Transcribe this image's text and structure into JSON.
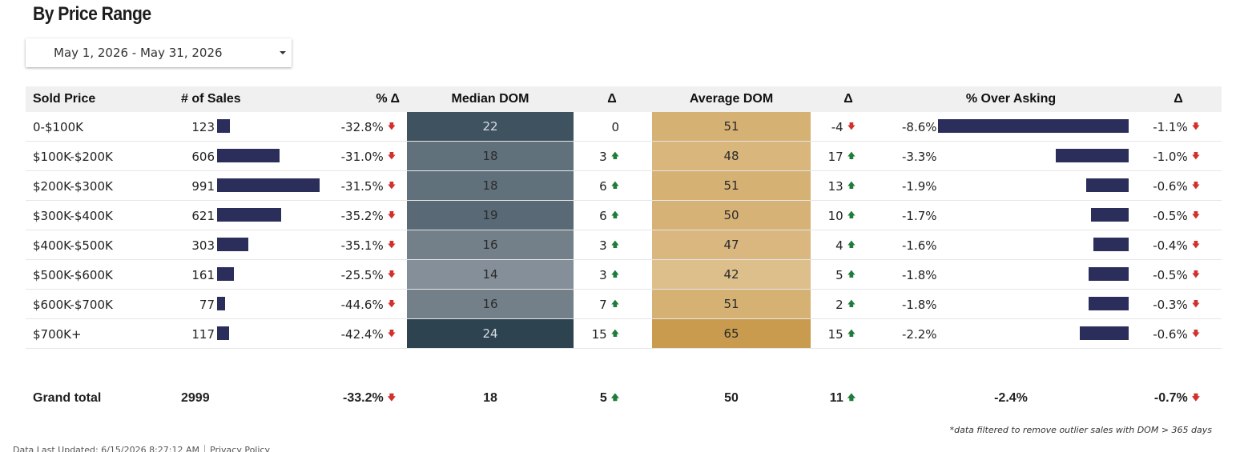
{
  "title": "By Price Range",
  "date_range": {
    "label": "May 1, 2026 - May 31, 2026",
    "icon": "caret-down-icon"
  },
  "table": {
    "columns": [
      "Sold Price",
      "# of Sales",
      "% Δ",
      "Median DOM",
      "Δ",
      "Average DOM",
      "Δ",
      "% Over Asking",
      "Δ"
    ],
    "rows": [
      {
        "price": "0-$100K",
        "sales": 123,
        "sales_pct": "-32.8%",
        "sales_pct_dir": "down",
        "median_dom": 22,
        "median_delta": "0",
        "median_dir": "none",
        "avg_dom": 51,
        "avg_delta": "-4",
        "avg_dir": "down",
        "over_asking": "-8.6%",
        "over_asking_value": -8.6,
        "oa_delta": "-1.1%",
        "oa_dir": "down"
      },
      {
        "price": "$100K-$200K",
        "sales": 606,
        "sales_pct": "-31.0%",
        "sales_pct_dir": "down",
        "median_dom": 18,
        "median_delta": "3",
        "median_dir": "up",
        "avg_dom": 48,
        "avg_delta": "17",
        "avg_dir": "up",
        "over_asking": "-3.3%",
        "over_asking_value": -3.3,
        "oa_delta": "-1.0%",
        "oa_dir": "down"
      },
      {
        "price": "$200K-$300K",
        "sales": 991,
        "sales_pct": "-31.5%",
        "sales_pct_dir": "down",
        "median_dom": 18,
        "median_delta": "6",
        "median_dir": "up",
        "avg_dom": 51,
        "avg_delta": "13",
        "avg_dir": "up",
        "over_asking": "-1.9%",
        "over_asking_value": -1.9,
        "oa_delta": "-0.6%",
        "oa_dir": "down"
      },
      {
        "price": "$300K-$400K",
        "sales": 621,
        "sales_pct": "-35.2%",
        "sales_pct_dir": "down",
        "median_dom": 19,
        "median_delta": "6",
        "median_dir": "up",
        "avg_dom": 50,
        "avg_delta": "10",
        "avg_dir": "up",
        "over_asking": "-1.7%",
        "over_asking_value": -1.7,
        "oa_delta": "-0.5%",
        "oa_dir": "down"
      },
      {
        "price": "$400K-$500K",
        "sales": 303,
        "sales_pct": "-35.1%",
        "sales_pct_dir": "down",
        "median_dom": 16,
        "median_delta": "3",
        "median_dir": "up",
        "avg_dom": 47,
        "avg_delta": "4",
        "avg_dir": "up",
        "over_asking": "-1.6%",
        "over_asking_value": -1.6,
        "oa_delta": "-0.4%",
        "oa_dir": "down"
      },
      {
        "price": "$500K-$600K",
        "sales": 161,
        "sales_pct": "-25.5%",
        "sales_pct_dir": "down",
        "median_dom": 14,
        "median_delta": "3",
        "median_dir": "up",
        "avg_dom": 42,
        "avg_delta": "5",
        "avg_dir": "up",
        "over_asking": "-1.8%",
        "over_asking_value": -1.8,
        "oa_delta": "-0.5%",
        "oa_dir": "down"
      },
      {
        "price": "$600K-$700K",
        "sales": 77,
        "sales_pct": "-44.6%",
        "sales_pct_dir": "down",
        "median_dom": 16,
        "median_delta": "7",
        "median_dir": "up",
        "avg_dom": 51,
        "avg_delta": "2",
        "avg_dir": "up",
        "over_asking": "-1.8%",
        "over_asking_value": -1.8,
        "oa_delta": "-0.3%",
        "oa_dir": "down"
      },
      {
        "price": "$700K+",
        "sales": 117,
        "sales_pct": "-42.4%",
        "sales_pct_dir": "down",
        "median_dom": 24,
        "median_delta": "15",
        "median_dir": "up",
        "avg_dom": 65,
        "avg_delta": "15",
        "avg_dir": "up",
        "over_asking": "-2.2%",
        "over_asking_value": -2.2,
        "oa_delta": "-0.6%",
        "oa_dir": "down"
      }
    ],
    "total": {
      "label": "Grand total",
      "sales": "2999",
      "sales_pct": "-33.2%",
      "sales_pct_dir": "down",
      "median_dom": "18",
      "median_delta": "5",
      "median_dir": "up",
      "avg_dom": "50",
      "avg_delta": "11",
      "avg_dir": "up",
      "over_asking": "-2.4%",
      "oa_delta": "-0.7%",
      "oa_dir": "down"
    }
  },
  "colors": {
    "bar": "#2b2d5b",
    "up_arrow": "#1e7d3a",
    "down_arrow": "#d0312d",
    "median_dom_dark": "#2d4350",
    "median_dom_light": "#848f99",
    "avg_dom_dark": "#c99b4f",
    "avg_dom_light": "#ddbf8c"
  },
  "footnote": "*data filtered to remove outlier sales with DOM > 365 days",
  "footer": {
    "updated": "Data Last Updated: 6/15/2026 8:27:12 AM",
    "privacy": "Privacy Policy"
  }
}
